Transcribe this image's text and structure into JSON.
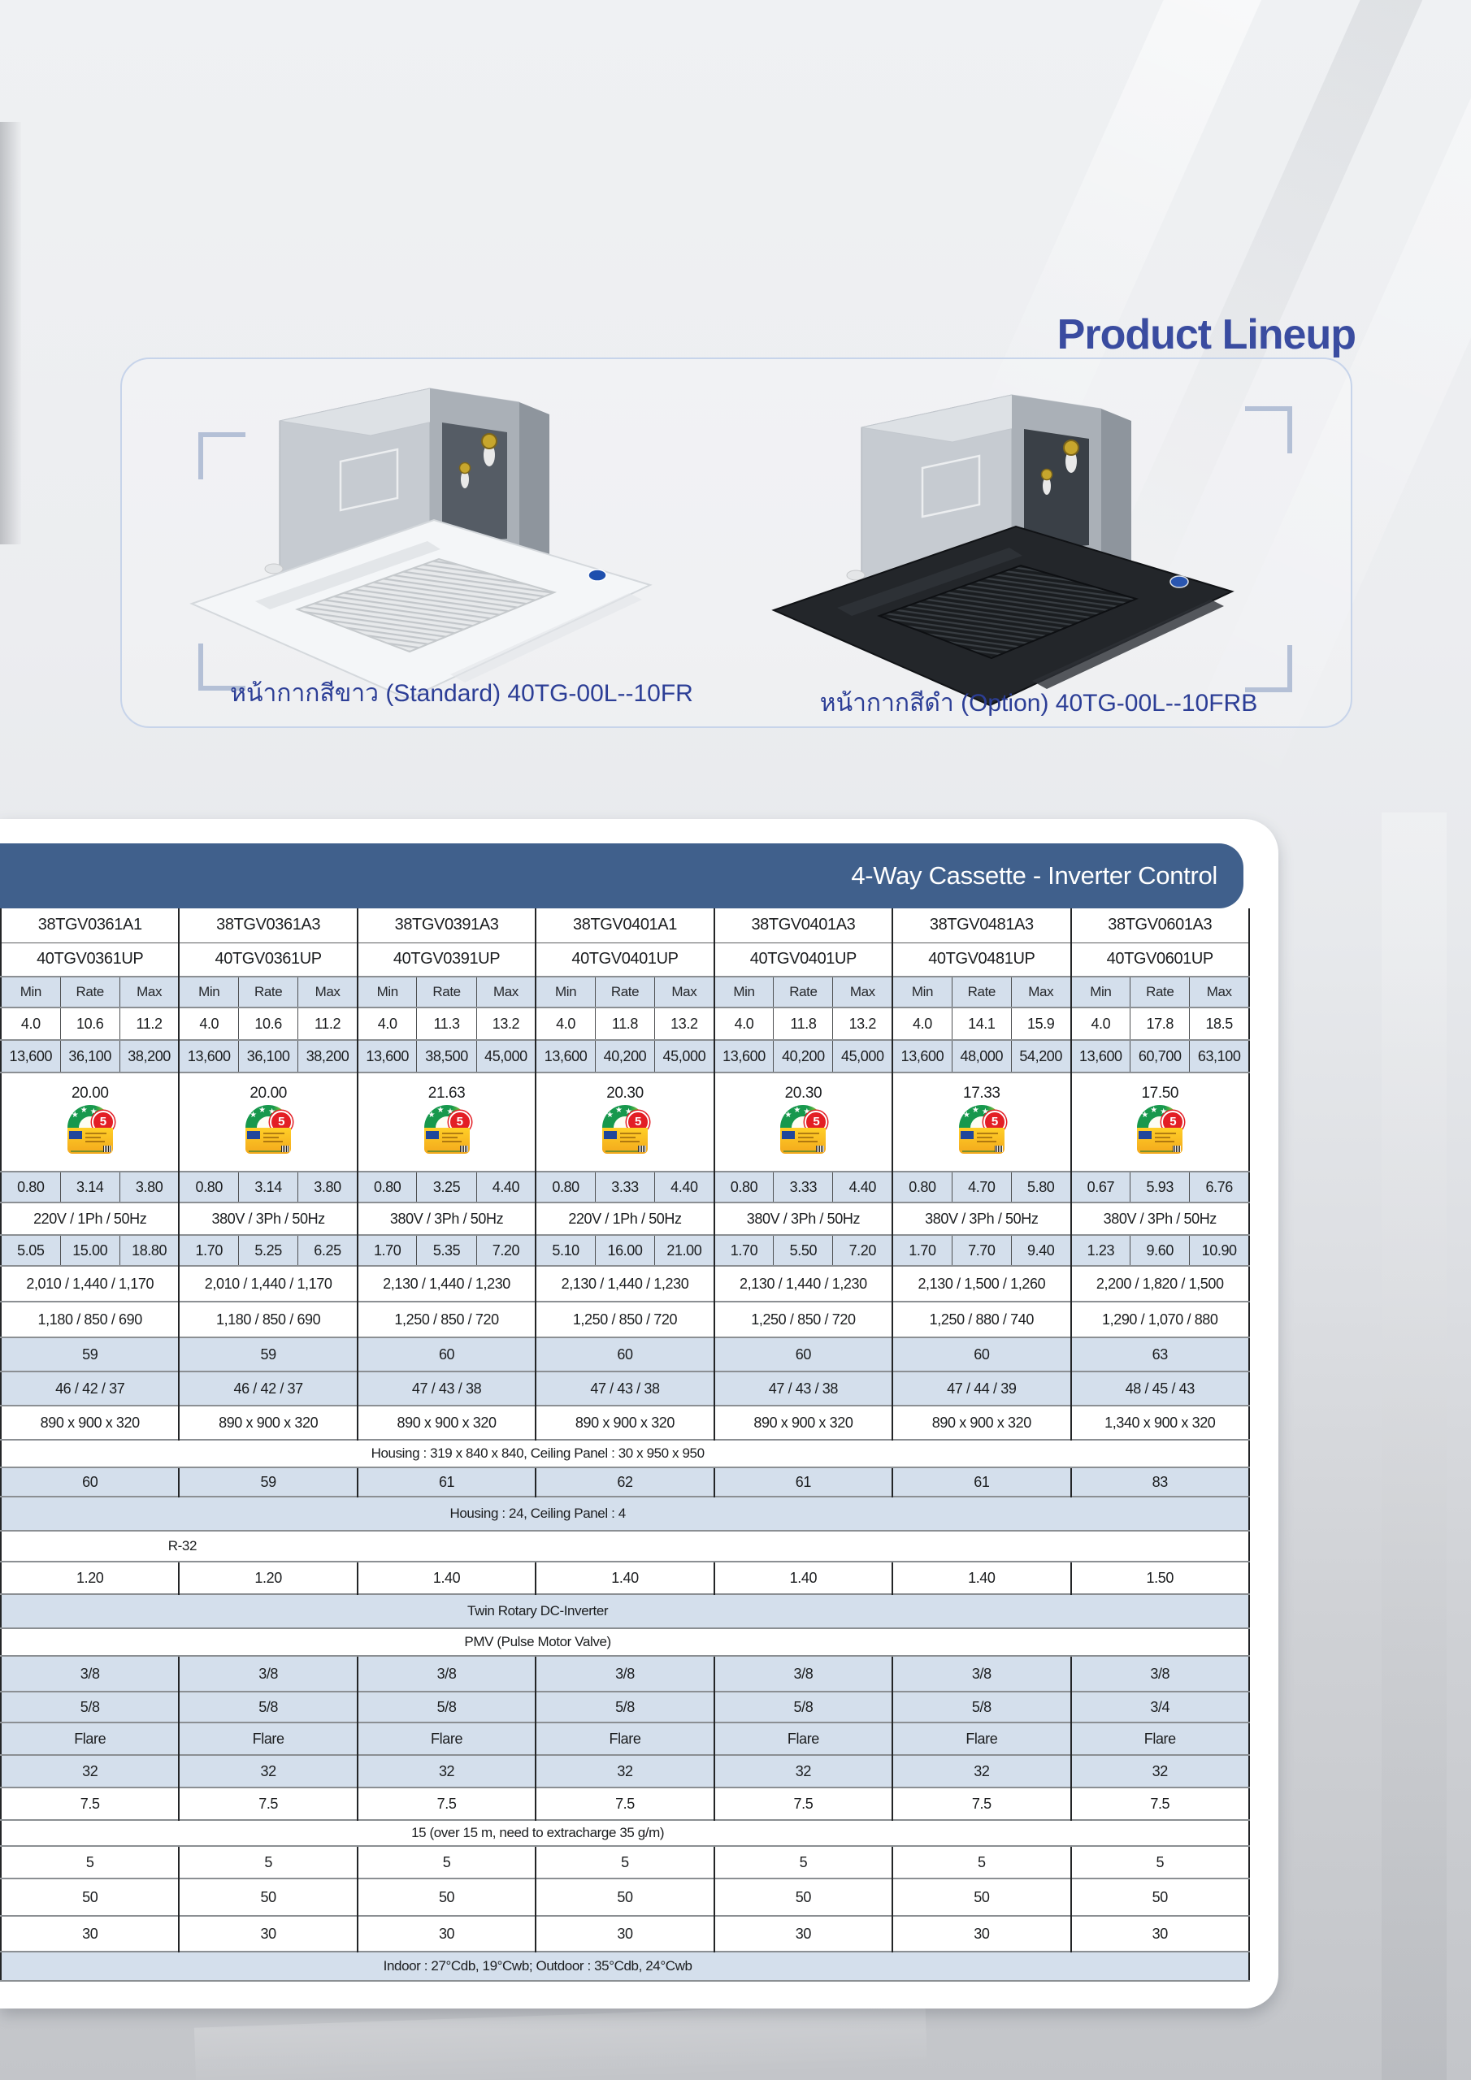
{
  "page": {
    "title": "Product Lineup"
  },
  "section": {
    "title": "4-Way Cassette - Inverter Control",
    "band_color": "#40608c",
    "shaded_row_color": "#d4dfec",
    "accent_text_color": "#3a4ca0"
  },
  "lineup": {
    "white_unit_caption": "หน้ากากสีขาว (Standard) 40TG-00L--10FR",
    "black_unit_caption": "หน้ากากสีดำ (Option) 40TG-00L--10FRB"
  },
  "energy": {
    "label_number": "5"
  },
  "table": {
    "indoor_models": [
      "38TGV0361A1",
      "38TGV0361A3",
      "38TGV0391A3",
      "38TGV0401A1",
      "38TGV0401A3",
      "38TGV0481A3",
      "38TGV0601A3"
    ],
    "outdoor_models": [
      "40TGV0361UP",
      "40TGV0361UP",
      "40TGV0391UP",
      "40TGV0401UP",
      "40TGV0401UP",
      "40TGV0481UP",
      "40TGV0601UP"
    ],
    "sub_headers": [
      "Min",
      "Rate",
      "Max"
    ],
    "rows": [
      {
        "id": "capacity_kw",
        "kind": "triple",
        "shaded": false,
        "h": 40,
        "values": [
          [
            "4.0",
            "10.6",
            "11.2"
          ],
          [
            "4.0",
            "10.6",
            "11.2"
          ],
          [
            "4.0",
            "11.3",
            "13.2"
          ],
          [
            "4.0",
            "11.8",
            "13.2"
          ],
          [
            "4.0",
            "11.8",
            "13.2"
          ],
          [
            "4.0",
            "14.1",
            "15.9"
          ],
          [
            "4.0",
            "17.8",
            "18.5"
          ]
        ]
      },
      {
        "id": "capacity_btu",
        "kind": "triple",
        "shaded": true,
        "h": 40,
        "values": [
          [
            "13,600",
            "36,100",
            "38,200"
          ],
          [
            "13,600",
            "36,100",
            "38,200"
          ],
          [
            "13,600",
            "38,500",
            "45,000"
          ],
          [
            "13,600",
            "40,200",
            "45,000"
          ],
          [
            "13,600",
            "40,200",
            "45,000"
          ],
          [
            "13,600",
            "48,000",
            "54,200"
          ],
          [
            "13,600",
            "60,700",
            "63,100"
          ]
        ]
      },
      {
        "id": "seer",
        "kind": "label",
        "shaded": false,
        "h": 122,
        "values": [
          "20.00",
          "20.00",
          "21.63",
          "20.30",
          "20.30",
          "17.33",
          "17.50"
        ]
      },
      {
        "id": "power_input_kw",
        "kind": "triple",
        "shaded": true,
        "h": 38,
        "values": [
          [
            "0.80",
            "3.14",
            "3.80"
          ],
          [
            "0.80",
            "3.14",
            "3.80"
          ],
          [
            "0.80",
            "3.25",
            "4.40"
          ],
          [
            "0.80",
            "3.33",
            "4.40"
          ],
          [
            "0.80",
            "3.33",
            "4.40"
          ],
          [
            "0.80",
            "4.70",
            "5.80"
          ],
          [
            "0.67",
            "5.93",
            "6.76"
          ]
        ]
      },
      {
        "id": "power_supply",
        "kind": "single",
        "shaded": false,
        "h": 40,
        "values": [
          "220V / 1Ph / 50Hz",
          "380V / 3Ph / 50Hz",
          "380V / 3Ph / 50Hz",
          "220V / 1Ph / 50Hz",
          "380V / 3Ph / 50Hz",
          "380V / 3Ph / 50Hz",
          "380V / 3Ph / 50Hz"
        ]
      },
      {
        "id": "running_current",
        "kind": "triple",
        "shaded": true,
        "h": 38,
        "values": [
          [
            "5.05",
            "15.00",
            "18.80"
          ],
          [
            "1.70",
            "5.25",
            "6.25"
          ],
          [
            "1.70",
            "5.35",
            "7.20"
          ],
          [
            "5.10",
            "16.00",
            "21.00"
          ],
          [
            "1.70",
            "5.50",
            "7.20"
          ],
          [
            "1.70",
            "7.70",
            "9.40"
          ],
          [
            "1.23",
            "9.60",
            "10.90"
          ]
        ]
      },
      {
        "id": "airflow_high",
        "kind": "single",
        "shaded": false,
        "h": 44,
        "values": [
          "2,010 / 1,440 / 1,170",
          "2,010 / 1,440 / 1,170",
          "2,130 / 1,440 / 1,230",
          "2,130 / 1,440 / 1,230",
          "2,130 / 1,440 / 1,230",
          "2,130 / 1,500 / 1,260",
          "2,200 / 1,820 / 1,500"
        ]
      },
      {
        "id": "airflow_low",
        "kind": "single",
        "shaded": false,
        "h": 44,
        "values": [
          "1,180 / 850 / 690",
          "1,180 / 850 / 690",
          "1,250 / 850 / 720",
          "1,250 / 850 / 720",
          "1,250 / 850 / 720",
          "1,250 / 880 / 740",
          "1,290 / 1,070 / 880"
        ]
      },
      {
        "id": "sound_power",
        "kind": "single",
        "shaded": true,
        "h": 42,
        "values": [
          "59",
          "59",
          "60",
          "60",
          "60",
          "60",
          "63"
        ]
      },
      {
        "id": "sound_pressure",
        "kind": "single",
        "shaded": true,
        "h": 42,
        "values": [
          "46 / 42 / 37",
          "46 / 42 / 37",
          "47 / 43 / 38",
          "47 / 43 / 38",
          "47 / 43 / 38",
          "47 / 44 / 39",
          "48 / 45 / 43"
        ]
      },
      {
        "id": "unit_dimensions",
        "kind": "single",
        "shaded": false,
        "h": 42,
        "values": [
          "890 x 900 x 320",
          "890 x 900 x 320",
          "890 x 900 x 320",
          "890 x 900 x 320",
          "890 x 900 x 320",
          "890 x 900 x 320",
          "1,340 x 900 x 320"
        ]
      },
      {
        "id": "housing_dimensions",
        "kind": "merged",
        "shaded": false,
        "h": 34,
        "text": "Housing : 319 x 840 x 840, Ceiling Panel : 30 x 950 x 950"
      },
      {
        "id": "unit_weight",
        "kind": "single",
        "shaded": true,
        "h": 36,
        "values": [
          "60",
          "59",
          "61",
          "62",
          "61",
          "61",
          "83"
        ]
      },
      {
        "id": "housing_weight",
        "kind": "merged",
        "shaded": true,
        "h": 42,
        "text": "Housing : 24, Ceiling Panel : 4"
      },
      {
        "id": "refrigerant_type",
        "kind": "merged",
        "shaded": false,
        "h": 38,
        "indent": true,
        "text": "R-32"
      },
      {
        "id": "refrigerant_charge",
        "kind": "single",
        "shaded": false,
        "h": 40,
        "values": [
          "1.20",
          "1.20",
          "1.40",
          "1.40",
          "1.40",
          "1.40",
          "1.50"
        ]
      },
      {
        "id": "compressor_type",
        "kind": "merged",
        "shaded": true,
        "h": 42,
        "text": "Twin Rotary DC-Inverter"
      },
      {
        "id": "expansion_device",
        "kind": "merged",
        "shaded": false,
        "h": 34,
        "text": "PMV (Pulse Motor Valve)"
      },
      {
        "id": "liquid_line",
        "kind": "single",
        "shaded": true,
        "h": 44,
        "values": [
          "3/8",
          "3/8",
          "3/8",
          "3/8",
          "3/8",
          "3/8",
          "3/8"
        ]
      },
      {
        "id": "gas_line",
        "kind": "single",
        "shaded": true,
        "h": 38,
        "values": [
          "5/8",
          "5/8",
          "5/8",
          "5/8",
          "5/8",
          "5/8",
          "3/4"
        ]
      },
      {
        "id": "connection_type",
        "kind": "single",
        "shaded": true,
        "h": 40,
        "values": [
          "Flare",
          "Flare",
          "Flare",
          "Flare",
          "Flare",
          "Flare",
          "Flare"
        ]
      },
      {
        "id": "max_pipe_length",
        "kind": "single",
        "shaded": true,
        "h": 40,
        "values": [
          "32",
          "32",
          "32",
          "32",
          "32",
          "32",
          "32"
        ]
      },
      {
        "id": "max_height_diff",
        "kind": "single",
        "shaded": false,
        "h": 40,
        "values": [
          "7.5",
          "7.5",
          "7.5",
          "7.5",
          "7.5",
          "7.5",
          "7.5"
        ]
      },
      {
        "id": "precharge_note",
        "kind": "merged",
        "shaded": false,
        "h": 32,
        "text": "15 (over 15 m, need to extracharge 35 g/m)"
      },
      {
        "id": "spec_5",
        "kind": "single",
        "shaded": false,
        "h": 40,
        "values": [
          "5",
          "5",
          "5",
          "5",
          "5",
          "5",
          "5"
        ]
      },
      {
        "id": "spec_50",
        "kind": "single",
        "shaded": false,
        "h": 46,
        "values": [
          "50",
          "50",
          "50",
          "50",
          "50",
          "50",
          "50"
        ]
      },
      {
        "id": "spec_30",
        "kind": "single",
        "shaded": false,
        "h": 44,
        "values": [
          "30",
          "30",
          "30",
          "30",
          "30",
          "30",
          "30"
        ]
      },
      {
        "id": "test_conditions",
        "kind": "merged",
        "shaded": true,
        "h": 36,
        "text": "Indoor : 27°Cdb, 19°Cwb; Outdoor : 35°Cdb, 24°Cwb"
      }
    ]
  }
}
